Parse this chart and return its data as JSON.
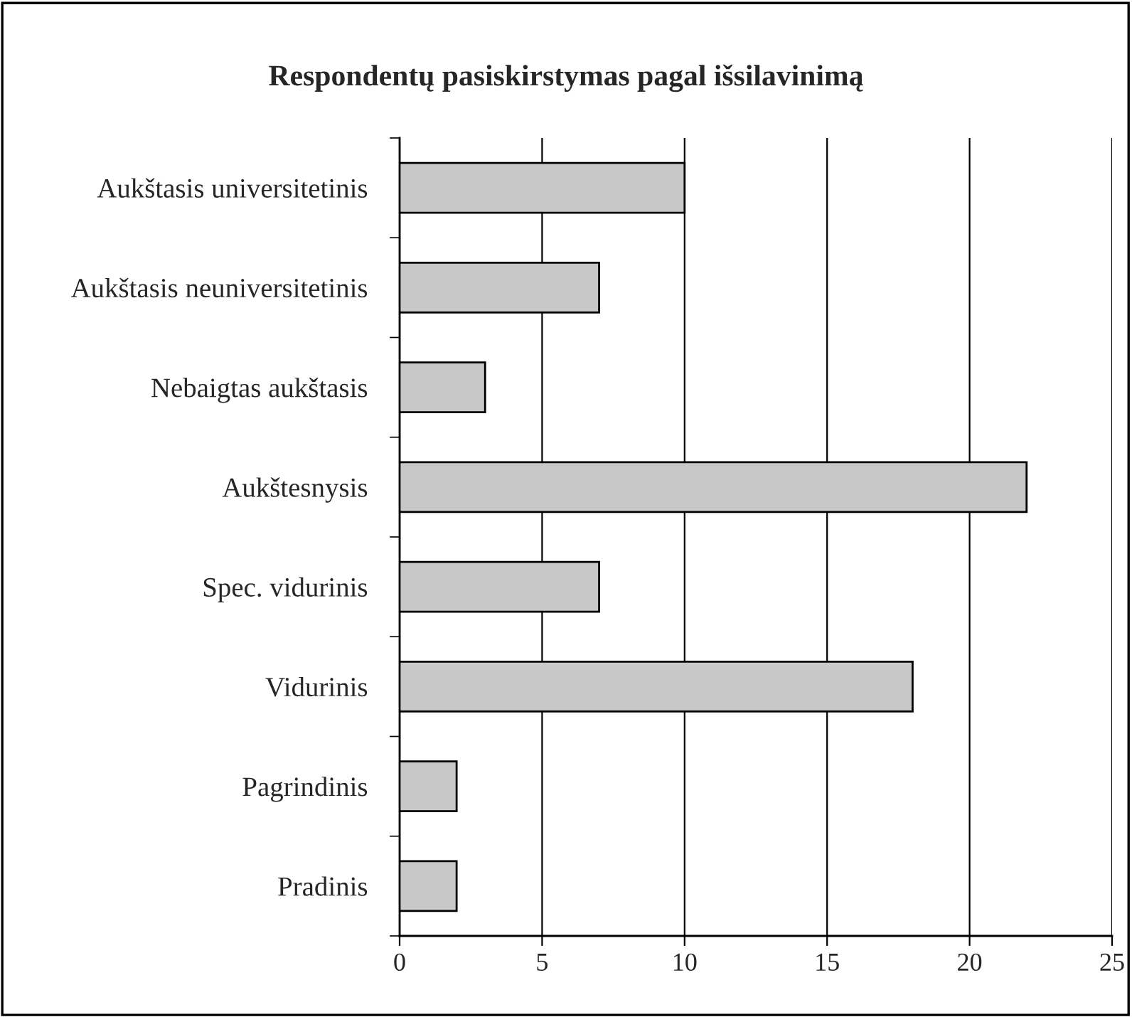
{
  "chart_data": {
    "type": "bar",
    "orientation": "horizontal",
    "title": "Respondentų pasiskirstymas pagal išsilavinimą",
    "categories": [
      "Aukštasis universitetinis",
      "Aukštasis neuniversitetinis",
      "Nebaigtas aukštasis",
      "Aukštesnysis",
      "Spec. vidurinis",
      "Vidurinis",
      "Pagrindinis",
      "Pradinis"
    ],
    "values": [
      10,
      7,
      3,
      22,
      7,
      18,
      2,
      2
    ],
    "color": "#c8c8c8",
    "xlim": [
      0,
      25
    ],
    "xticks": [
      0,
      5,
      10,
      15,
      20,
      25
    ],
    "grid": "x"
  }
}
